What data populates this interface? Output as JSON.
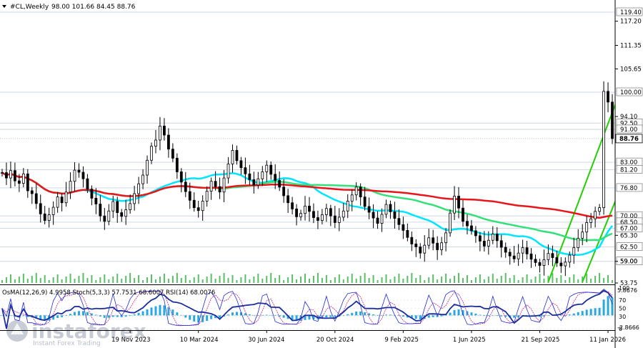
{
  "header": {
    "symbol": "#CL,Weekly",
    "ohlc": "98.00 101.66 84.45 88.76"
  },
  "indicator_header": "OsMA(12,26,9) 4.9958  Stoch(5,3,3) 57.7531 68.6007  RSI(14) 68.0076",
  "watermark": {
    "brand": "instaforex",
    "tagline": "Instant Forex Trading"
  },
  "colors": {
    "background": "#ffffff",
    "bull": "#000000",
    "bear": "#000000",
    "ma_short": "#00e5ff",
    "ma_mid": "#33e07a",
    "ma_long": "#e8151b",
    "channel": "#22d000",
    "volume": "#3cb44b",
    "osma": "#29a8e0",
    "stoch_main": "#1f2bd8",
    "stoch_signal": "#c21f8a",
    "rsi": "#1c2f9c",
    "gridline": "#cfd6e6",
    "last_price_bg": "#ffffff"
  },
  "chart_data": {
    "type": "candlestick",
    "title": "#CL,Weekly",
    "y_axis": {
      "range": [
        53.75,
        122.0
      ],
      "ticks": [
        "117.20",
        "111.35",
        "105.65",
        "94.10",
        "65.30",
        "59.00",
        "53.75"
      ],
      "position": "right"
    },
    "levels": [
      {
        "label": "119.40",
        "value": 119.4
      },
      {
        "label": "100.00",
        "value": 100.0
      },
      {
        "label": "92.50",
        "value": 92.5
      },
      {
        "label": "91.00",
        "value": 91.0
      },
      {
        "label": "83.00",
        "value": 83.0
      },
      {
        "label": "81.20",
        "value": 81.2
      },
      {
        "label": "76.80",
        "value": 76.8
      },
      {
        "label": "70.00",
        "value": 70.0
      },
      {
        "label": "68.50",
        "value": 68.5
      },
      {
        "label": "67.00",
        "value": 67.0
      },
      {
        "label": "62.50",
        "value": 62.5
      },
      {
        "label": "59.00",
        "value": 59.0
      }
    ],
    "last_price": {
      "label": "88.76",
      "value": 88.76
    },
    "x_axis": {
      "labels": [
        {
          "label": "19 Nov 2023",
          "index": 30
        },
        {
          "label": "10 Mar 2024",
          "index": 46
        },
        {
          "label": "30 Jun 2024",
          "index": 62
        },
        {
          "label": "20 Oct 2024",
          "index": 78
        },
        {
          "label": "9 Feb 2025",
          "index": 94
        },
        {
          "label": "1 Jun 2025",
          "index": 110
        },
        {
          "label": "21 Sep 2025",
          "index": 126
        },
        {
          "label": "11 Jan 2026",
          "index": 142
        }
      ]
    },
    "closes": [
      80.5,
      79.2,
      81.0,
      78.5,
      77.9,
      80.2,
      76.1,
      75.4,
      73.0,
      70.5,
      68.9,
      70.3,
      72.1,
      74.6,
      73.2,
      75.8,
      78.4,
      81.1,
      80.6,
      79.0,
      76.5,
      74.3,
      72.9,
      70.0,
      68.7,
      71.2,
      73.5,
      70.8,
      69.9,
      71.5,
      73.0,
      75.4,
      77.8,
      79.9,
      83.5,
      86.9,
      88.4,
      91.8,
      89.6,
      86.2,
      84.0,
      80.7,
      78.2,
      75.9,
      73.8,
      72.0,
      71.3,
      73.6,
      76.0,
      78.4,
      77.1,
      75.8,
      79.2,
      82.6,
      85.9,
      83.4,
      81.7,
      80.2,
      78.8,
      77.5,
      79.0,
      80.7,
      82.3,
      80.1,
      78.6,
      77.0,
      74.9,
      73.2,
      71.7,
      69.8,
      70.6,
      72.4,
      71.1,
      69.6,
      68.9,
      70.3,
      71.8,
      70.0,
      68.4,
      69.7,
      71.2,
      73.6,
      75.1,
      77.0,
      74.6,
      72.3,
      70.9,
      69.5,
      68.2,
      70.4,
      72.8,
      71.0,
      69.4,
      67.9,
      66.5,
      64.8,
      63.2,
      62.5,
      61.0,
      62.9,
      64.7,
      63.4,
      61.8,
      63.5,
      65.9,
      70.7,
      74.8,
      71.9,
      68.7,
      67.6,
      66.4,
      65.2,
      63.9,
      62.7,
      64.1,
      65.6,
      64.0,
      62.4,
      61.2,
      60.3,
      59.6,
      61.0,
      62.3,
      60.8,
      59.5,
      58.7,
      58.0,
      59.4,
      60.9,
      59.9,
      58.6,
      57.9,
      58.8,
      60.5,
      62.3,
      64.6,
      66.1,
      68.4,
      69.3,
      71.1,
      72.0,
      100.2,
      97.6,
      88.76
    ],
    "ranges": {
      "high_pad": 1.8,
      "low_pad": 1.9
    },
    "moving_averages": [
      {
        "period": 20,
        "color_key": "ma_short"
      },
      {
        "period": 50,
        "color_key": "ma_mid"
      },
      {
        "period": 100,
        "color_key": "ma_long"
      }
    ],
    "channel_lines": [
      {
        "from": [
          128,
          54.0
        ],
        "to": [
          153,
          122.5
        ]
      },
      {
        "from": [
          136,
          54.0
        ],
        "to": [
          163,
          122.5
        ]
      },
      {
        "from": [
          146,
          54.0
        ],
        "to": [
          173,
          122.5
        ]
      }
    ],
    "oscillators": {
      "osma_range": [
        -2.8666,
        5.8676
      ],
      "osma_ticks": [
        "5.8676",
        "-2.8666"
      ],
      "stoch_ticks": [
        "100",
        "70",
        "50",
        "30",
        "0"
      ]
    }
  }
}
